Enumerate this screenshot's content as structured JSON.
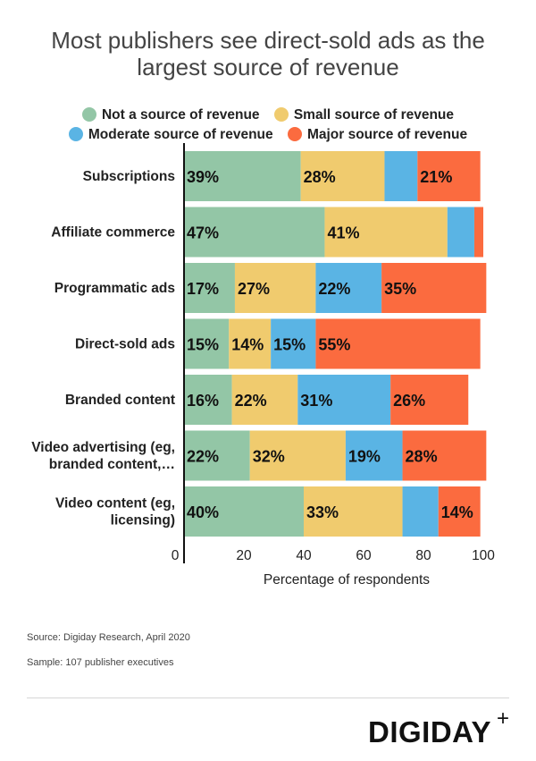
{
  "title_line1": "Most publishers see direct-sold ads as the",
  "title_line2": "largest source of revenue",
  "legend": [
    {
      "label": "Not a source of revenue",
      "color": "#93c6a6"
    },
    {
      "label": "Small source of revenue",
      "color": "#f0cb6e"
    },
    {
      "label": "Moderate source of revenue",
      "color": "#5ab4e4"
    },
    {
      "label": "Major source of revenue",
      "color": "#fb6b3f"
    }
  ],
  "chart_data": {
    "type": "bar",
    "orientation": "horizontal",
    "stacked": true,
    "categories": [
      [
        "Subscriptions"
      ],
      [
        "Affiliate commerce"
      ],
      [
        "Programmatic ads"
      ],
      [
        "Direct-sold ads"
      ],
      [
        "Branded content"
      ],
      [
        "Video advertising (eg,",
        "branded content,…"
      ],
      [
        "Video content (eg,",
        "licensing)"
      ]
    ],
    "series": [
      {
        "name": "Not a source of revenue",
        "color": "#93c6a6",
        "values": [
          39,
          47,
          17,
          15,
          16,
          22,
          40
        ],
        "labels": [
          "39%",
          "47%",
          "17%",
          "15%",
          "16%",
          "22%",
          "40%"
        ]
      },
      {
        "name": "Small source of revenue",
        "color": "#f0cb6e",
        "values": [
          28,
          41,
          27,
          14,
          22,
          32,
          33
        ],
        "labels": [
          "28%",
          "41%",
          "27%",
          "14%",
          "22%",
          "32%",
          "33%"
        ]
      },
      {
        "name": "Moderate source of revenue",
        "color": "#5ab4e4",
        "values": [
          11,
          9,
          22,
          15,
          31,
          19,
          12
        ],
        "labels": [
          "",
          "",
          "22%",
          "15%",
          "31%",
          "19%",
          ""
        ]
      },
      {
        "name": "Major source of revenue",
        "color": "#fb6b3f",
        "values": [
          21,
          3,
          35,
          55,
          26,
          28,
          14
        ],
        "labels": [
          "21%",
          "",
          "35%",
          "55%",
          "26%",
          "28%",
          "14%"
        ]
      }
    ],
    "xlabel": "Percentage of respondents",
    "ylabel": "",
    "xlim": [
      0,
      100
    ],
    "xticks": [
      0,
      20,
      40,
      60,
      80,
      100
    ],
    "xtick_labels": [
      "0",
      "20",
      "40",
      "60",
      "80",
      "100"
    ],
    "grid": false,
    "legend_position": "top"
  },
  "source": "Source: Digiday Research, April 2020",
  "sample": "Sample: 107 publisher executives",
  "brand": "DIGIDAY",
  "brand_mark": "+"
}
